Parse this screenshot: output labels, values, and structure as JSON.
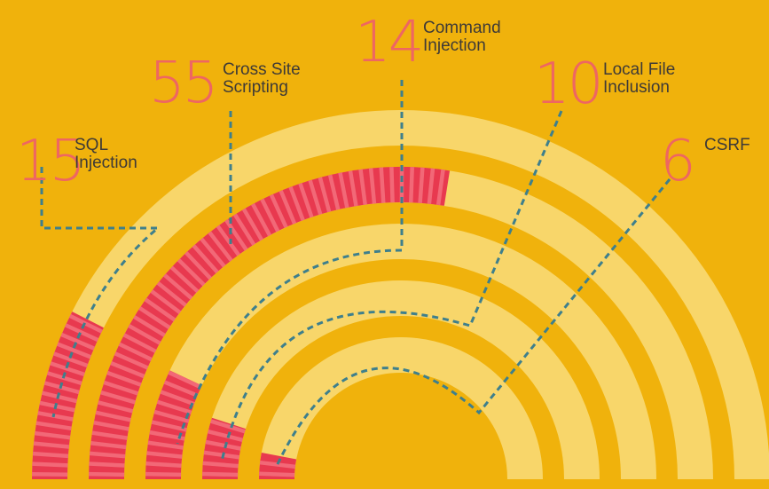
{
  "chart_data": {
    "type": "radial-bar",
    "max": 100,
    "series": [
      {
        "value": 15,
        "label_lines": [
          "SQL",
          "Injection"
        ]
      },
      {
        "value": 55,
        "label_lines": [
          "Cross Site",
          "Scripting"
        ]
      },
      {
        "value": 14,
        "label_lines": [
          "Command",
          "Injection"
        ]
      },
      {
        "value": 10,
        "label_lines": [
          "Local File",
          "Inclusion"
        ]
      },
      {
        "value": 6,
        "label_lines": [
          "CSRF"
        ]
      }
    ],
    "values_shown": [
      "15",
      "55",
      "14",
      "10",
      "6"
    ]
  },
  "colors": {
    "background": "#F0B20C",
    "track": "#F8D66A",
    "bar": "#E8394F",
    "bar_stripe": "#F26877",
    "leader": "#3E7F8C",
    "number": "#EE6662",
    "text": "#3E3A37"
  }
}
